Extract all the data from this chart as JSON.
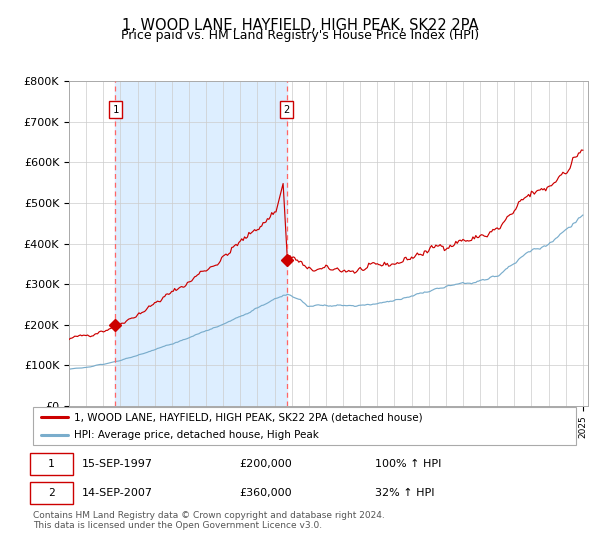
{
  "title": "1, WOOD LANE, HAYFIELD, HIGH PEAK, SK22 2PA",
  "subtitle": "Price paid vs. HM Land Registry's House Price Index (HPI)",
  "title_fontsize": 10.5,
  "subtitle_fontsize": 9,
  "x_start_year": 1995,
  "x_end_year": 2025,
  "y_ticks": [
    0,
    100000,
    200000,
    300000,
    400000,
    500000,
    600000,
    700000,
    800000
  ],
  "y_tick_labels": [
    "£0",
    "£100K",
    "£200K",
    "£300K",
    "£400K",
    "£500K",
    "£600K",
    "£700K",
    "£800K"
  ],
  "sale1_date": "15-SEP-1997",
  "sale1_price": 200000,
  "sale1_x": 1997.71,
  "sale2_date": "14-SEP-2007",
  "sale2_price": 360000,
  "sale2_x": 2007.71,
  "red_line_color": "#cc0000",
  "blue_line_color": "#7aadcc",
  "shading_color": "#ddeeff",
  "dashed_line_color": "#ff6666",
  "background_color": "#ffffff",
  "grid_color": "#cccccc",
  "legend1_text": "1, WOOD LANE, HAYFIELD, HIGH PEAK, SK22 2PA (detached house)",
  "legend2_text": "HPI: Average price, detached house, High Peak",
  "footer": "Contains HM Land Registry data © Crown copyright and database right 2024.\nThis data is licensed under the Open Government Licence v3.0.",
  "font_family": "DejaVu Sans"
}
